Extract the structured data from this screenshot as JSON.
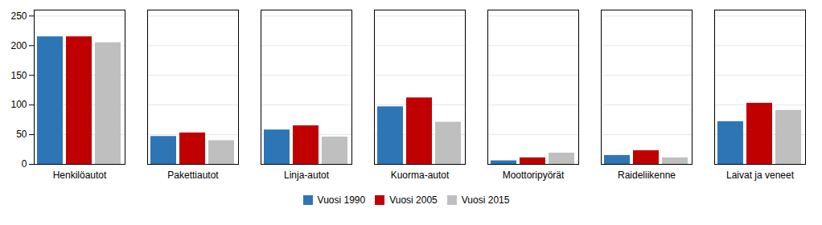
{
  "chart_data": {
    "type": "bar",
    "categories": [
      "Henkilöautot",
      "Pakettiautot",
      "Linja-autot",
      "Kuorma-autot",
      "Moottoripyörät",
      "Raideliikenne",
      "Laivat ja veneet"
    ],
    "series": [
      {
        "name": "Vuosi 1990",
        "color": "#2E75B6",
        "values": [
          215,
          47,
          58,
          97,
          6,
          15,
          72
        ]
      },
      {
        "name": "Vuosi 2005",
        "color": "#C00000",
        "values": [
          215,
          53,
          65,
          112,
          11,
          23,
          103
        ]
      },
      {
        "name": "Vuosi 2015",
        "color": "#BFBFBF",
        "values": [
          205,
          40,
          46,
          71,
          19,
          11,
          91
        ]
      }
    ],
    "ylim": [
      0,
      260
    ],
    "yticks": [
      0,
      50,
      100,
      150,
      200,
      250
    ],
    "grid": true,
    "legend": "bottom"
  }
}
